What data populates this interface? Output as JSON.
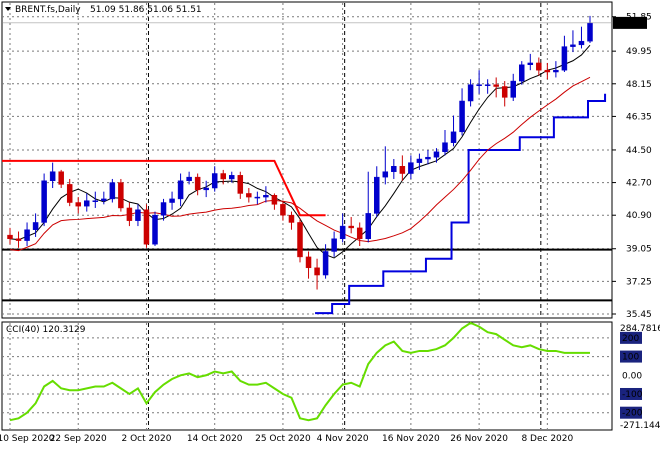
{
  "header": {
    "symbol": "BRENT.fs,Daily",
    "ohlc": "51.09 51.86 51.06 51.51"
  },
  "indicator": {
    "name": "CCI(40)",
    "value": "120.3129",
    "max_label": "284.7816",
    "min_label": "-271.144",
    "levels": [
      "200",
      "100",
      "0.00",
      "-100",
      "-200"
    ]
  },
  "current_price": "51.51",
  "price_axis": [
    "51.85",
    "49.95",
    "48.15",
    "46.35",
    "44.50",
    "42.70",
    "40.90",
    "39.05",
    "37.25",
    "35.45"
  ],
  "time_axis": [
    "10 Sep 2020",
    "22 Sep 2020",
    "2 Oct 2020",
    "14 Oct 2020",
    "25 Oct 2020",
    "4 Nov 2020",
    "16 Nov 2020",
    "26 Nov 2020",
    "8 Dec 2020"
  ],
  "colors": {
    "bull": "#0000cc",
    "bear": "#cc0000",
    "cci": "#66dd00",
    "channel": "#ff0000",
    "trail": "#0000dd",
    "ma_fast": "#000000",
    "ma_slow": "#cc0000",
    "support": "#000000",
    "level_box": "#1a237e"
  },
  "chart_data": {
    "type": "candlestick",
    "title": "BRENT.fs,Daily",
    "ylim": [
      35.45,
      52.5
    ],
    "x": [
      "10 Sep",
      "11 Sep",
      "14 Sep",
      "15 Sep",
      "16 Sep",
      "17 Sep",
      "18 Sep",
      "21 Sep",
      "22 Sep",
      "23 Sep",
      "24 Sep",
      "25 Sep",
      "28 Sep",
      "29 Sep",
      "30 Sep",
      "1 Oct",
      "2 Oct",
      "5 Oct",
      "6 Oct",
      "7 Oct",
      "8 Oct",
      "9 Oct",
      "12 Oct",
      "13 Oct",
      "14 Oct",
      "15 Oct",
      "16 Oct",
      "19 Oct",
      "20 Oct",
      "21 Oct",
      "22 Oct",
      "23 Oct",
      "26 Oct",
      "27 Oct",
      "28 Oct",
      "29 Oct",
      "30 Oct",
      "2 Nov",
      "3 Nov",
      "4 Nov",
      "5 Nov",
      "6 Nov",
      "9 Nov",
      "10 Nov",
      "11 Nov",
      "12 Nov",
      "13 Nov",
      "16 Nov",
      "17 Nov",
      "18 Nov",
      "19 Nov",
      "20 Nov",
      "23 Nov",
      "24 Nov",
      "25 Nov",
      "26 Nov",
      "27 Nov",
      "30 Nov",
      "1 Dec",
      "2 Dec",
      "3 Dec",
      "4 Dec",
      "7 Dec",
      "8 Dec",
      "9 Dec",
      "10 Dec",
      "11 Dec",
      "14 Dec",
      "15 Dec"
    ],
    "open": [
      39.8,
      39.6,
      39.5,
      40.1,
      40.5,
      42.8,
      43.3,
      42.6,
      41.6,
      41.4,
      41.7,
      41.7,
      41.8,
      42.7,
      41.3,
      40.6,
      41.2,
      39.3,
      40.9,
      41.6,
      41.8,
      42.8,
      43.0,
      42.3,
      42.4,
      43.2,
      42.9,
      43.1,
      42.1,
      41.9,
      41.9,
      42.0,
      41.5,
      40.9,
      40.5,
      38.6,
      38.0,
      37.6,
      38.9,
      39.6,
      40.3,
      40.2,
      39.6,
      41.0,
      43.0,
      43.3,
      43.6,
      43.2,
      43.8,
      44.0,
      44.1,
      44.4,
      44.9,
      45.5,
      47.2,
      48.1,
      48.1,
      48.1,
      48.0,
      47.4,
      48.3,
      49.2,
      49.3,
      48.9,
      48.8,
      48.9,
      50.2,
      50.3,
      50.5
    ],
    "close": [
      39.6,
      39.5,
      40.1,
      40.5,
      42.8,
      43.3,
      42.6,
      41.6,
      41.4,
      41.7,
      41.7,
      41.8,
      42.7,
      41.3,
      40.6,
      41.2,
      39.3,
      40.9,
      41.6,
      41.8,
      42.8,
      43.0,
      42.3,
      42.4,
      43.2,
      42.9,
      43.1,
      42.1,
      41.9,
      41.9,
      42.0,
      41.5,
      40.9,
      40.5,
      38.6,
      38.0,
      37.6,
      38.9,
      39.6,
      40.3,
      40.2,
      39.6,
      41.0,
      43.0,
      43.3,
      43.6,
      43.2,
      43.8,
      44.0,
      44.1,
      44.4,
      44.9,
      45.5,
      47.2,
      48.1,
      48.1,
      48.1,
      48.0,
      47.4,
      48.3,
      49.2,
      49.3,
      48.9,
      48.8,
      48.9,
      50.2,
      50.3,
      50.5,
      51.5
    ],
    "high": [
      40.2,
      40.0,
      40.5,
      41.0,
      43.2,
      43.8,
      43.4,
      42.9,
      41.9,
      42.1,
      42.2,
      42.2,
      42.9,
      42.9,
      41.6,
      41.5,
      41.5,
      41.1,
      41.8,
      42.2,
      43.2,
      43.3,
      43.2,
      42.8,
      43.6,
      43.4,
      43.3,
      43.3,
      42.4,
      42.2,
      42.5,
      42.1,
      41.7,
      41.1,
      40.7,
      38.9,
      38.5,
      39.3,
      40.0,
      41.0,
      40.8,
      40.5,
      43.3,
      43.6,
      44.7,
      44.0,
      44.2,
      44.2,
      44.3,
      44.5,
      44.6,
      45.6,
      46.4,
      47.9,
      48.4,
      48.9,
      48.4,
      48.5,
      48.3,
      48.7,
      49.4,
      49.8,
      49.6,
      49.3,
      49.4,
      50.8,
      51.1,
      51.3,
      51.9
    ],
    "low": [
      39.3,
      39.1,
      39.2,
      39.7,
      40.3,
      42.4,
      42.4,
      41.4,
      41.0,
      41.1,
      41.3,
      41.5,
      41.6,
      41.1,
      40.3,
      40.3,
      39.1,
      39.2,
      40.6,
      41.2,
      41.4,
      42.6,
      42.0,
      41.9,
      42.2,
      42.6,
      42.7,
      41.8,
      41.6,
      41.5,
      41.6,
      41.2,
      40.6,
      40.1,
      38.3,
      37.4,
      36.8,
      37.4,
      38.6,
      39.4,
      39.9,
      39.2,
      39.4,
      40.8,
      42.6,
      42.9,
      42.8,
      42.9,
      43.4,
      43.7,
      43.8,
      44.2,
      44.7,
      45.3,
      46.9,
      47.6,
      47.6,
      47.4,
      46.9,
      47.2,
      48.1,
      48.9,
      48.6,
      48.4,
      48.5,
      48.8,
      49.9,
      50.1,
      50.4
    ],
    "cci": [
      -240,
      -230,
      -200,
      -150,
      -60,
      -30,
      -70,
      -80,
      -80,
      -70,
      -60,
      -60,
      -40,
      -70,
      -100,
      -70,
      -150,
      -90,
      -50,
      -20,
      0,
      10,
      -10,
      0,
      20,
      10,
      20,
      -30,
      -50,
      -50,
      -40,
      -70,
      -100,
      -120,
      -230,
      -240,
      -230,
      -160,
      -100,
      -50,
      -40,
      -60,
      60,
      120,
      160,
      180,
      130,
      120,
      130,
      130,
      140,
      160,
      200,
      250,
      280,
      260,
      230,
      220,
      190,
      160,
      150,
      160,
      140,
      130,
      130,
      120,
      120,
      120,
      120
    ],
    "overlays": {
      "channel_upper": {
        "x_range": [
          "10 Sep",
          "26 Oct"
        ],
        "value": 43.9
      },
      "channel_upper_after": 40.9,
      "support_upper": 39.0,
      "support_lower": 36.2
    },
    "xlabel": "",
    "ylabel": ""
  }
}
